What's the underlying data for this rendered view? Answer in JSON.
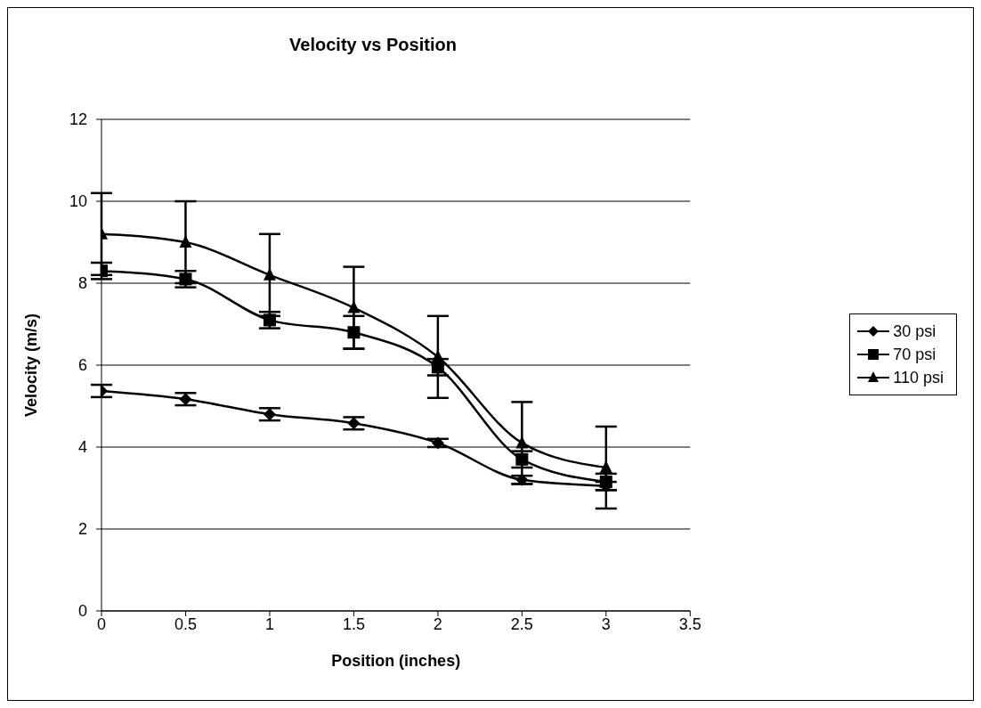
{
  "chart_data": {
    "type": "line",
    "title": "Velocity vs Position",
    "xlabel": "Position (inches)",
    "ylabel": "Velocity (m/s)",
    "x": [
      0,
      0.5,
      1,
      1.5,
      2,
      2.5,
      3
    ],
    "series": [
      {
        "name": "30 psi",
        "color": "#000000",
        "marker": "diamond",
        "values": [
          5.37,
          5.17,
          4.8,
          4.58,
          4.1,
          3.2,
          3.05
        ],
        "errors": [
          0.15,
          0.15,
          0.15,
          0.15,
          0.1,
          0.1,
          0.1
        ]
      },
      {
        "name": "70 psi",
        "color": "#000000",
        "marker": "square",
        "values": [
          8.3,
          8.1,
          7.1,
          6.8,
          5.95,
          3.7,
          3.15
        ],
        "errors": [
          0.2,
          0.2,
          0.2,
          0.4,
          0.2,
          0.2,
          0.2
        ]
      },
      {
        "name": "110 psi",
        "color": "#000000",
        "marker": "triangle",
        "values": [
          9.2,
          9.0,
          8.2,
          7.4,
          6.2,
          4.1,
          3.5
        ],
        "errors": [
          1,
          1,
          1,
          1,
          1,
          1,
          1
        ]
      }
    ],
    "xlim": [
      0,
      3.5
    ],
    "xticks": [
      0,
      0.5,
      1,
      1.5,
      2,
      2.5,
      3,
      3.5
    ],
    "ylim": [
      0,
      12
    ],
    "yticks": [
      0,
      2,
      4,
      6,
      8,
      10,
      12
    ],
    "grid": "y",
    "legend": "right",
    "line_style": "solid"
  }
}
